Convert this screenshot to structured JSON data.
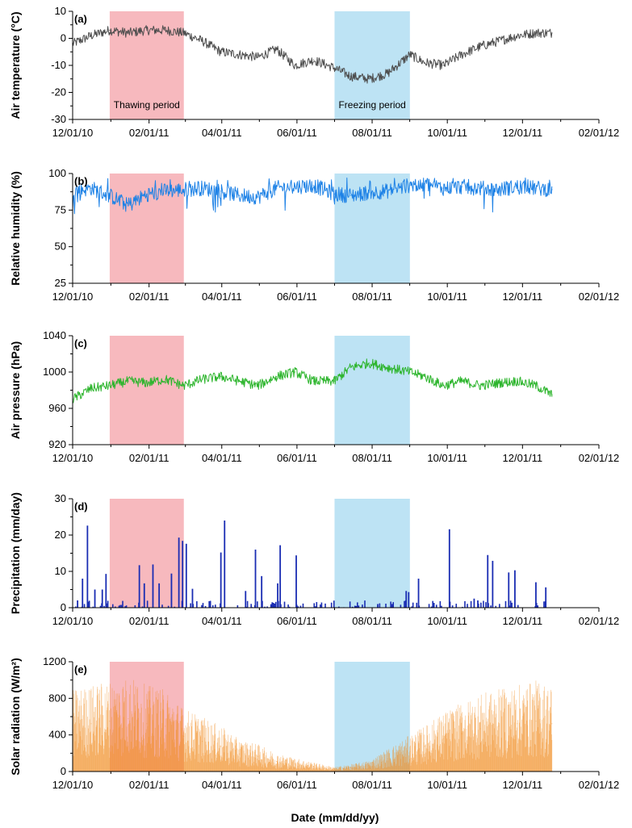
{
  "figure": {
    "xlabel": "Date (mm/dd/yy)",
    "x_tick_labels": [
      "12/01/10",
      "02/01/11",
      "04/01/11",
      "06/01/11",
      "08/01/11",
      "10/01/11",
      "12/01/11",
      "02/01/12"
    ],
    "periods": [
      {
        "name": "thawing",
        "label": "Thawing period",
        "start_day": 30,
        "end_day": 90,
        "color": "#f7b9be"
      },
      {
        "name": "freezing",
        "label": "Freezing period",
        "start_day": 212,
        "end_day": 273,
        "color": "#bde3f4"
      }
    ]
  },
  "chart_data": [
    {
      "panel": "(a)",
      "type": "line",
      "ylabel": "Air temperature (°C)",
      "ylim": [
        -30,
        10
      ],
      "yticks": [
        10,
        0,
        -10,
        -20,
        -30
      ],
      "color": "#4d4d4d",
      "x_day_range": [
        0,
        426
      ],
      "x": [
        0,
        15,
        30,
        45,
        60,
        75,
        90,
        105,
        120,
        135,
        150,
        165,
        180,
        195,
        212,
        225,
        240,
        255,
        273,
        285,
        300,
        315,
        330,
        345,
        360,
        375,
        388
      ],
      "values": [
        -2,
        1,
        3,
        2,
        3,
        3,
        2,
        -1,
        -5,
        -6,
        -7,
        -4,
        -10,
        -8,
        -11,
        -14,
        -15,
        -13,
        -6,
        -9,
        -10,
        -6,
        -3,
        -1,
        1,
        2,
        2
      ]
    },
    {
      "panel": "(b)",
      "type": "line",
      "ylabel": "Relative humidity (%)",
      "ylim": [
        25,
        100
      ],
      "yticks": [
        100,
        75,
        50,
        25
      ],
      "color": "#1e82e6",
      "x_day_range": [
        0,
        426
      ],
      "x": [
        0,
        15,
        30,
        45,
        60,
        75,
        90,
        105,
        120,
        135,
        150,
        165,
        180,
        195,
        212,
        225,
        240,
        255,
        273,
        285,
        300,
        315,
        330,
        345,
        360,
        375,
        388
      ],
      "values": [
        88,
        90,
        85,
        78,
        86,
        88,
        89,
        90,
        88,
        85,
        84,
        90,
        91,
        92,
        86,
        85,
        87,
        88,
        92,
        93,
        90,
        91,
        90,
        89,
        91,
        90,
        89
      ]
    },
    {
      "panel": "(c)",
      "type": "line",
      "ylabel": "Air pressure (hPa)",
      "ylim": [
        920,
        1040
      ],
      "yticks": [
        1040,
        1000,
        960,
        920
      ],
      "color": "#2db52d",
      "x_day_range": [
        0,
        426
      ],
      "x": [
        0,
        15,
        30,
        45,
        60,
        75,
        90,
        105,
        120,
        135,
        150,
        165,
        180,
        195,
        212,
        225,
        240,
        255,
        273,
        285,
        300,
        315,
        330,
        345,
        360,
        375,
        388
      ],
      "values": [
        970,
        982,
        985,
        990,
        988,
        992,
        985,
        992,
        995,
        990,
        985,
        995,
        1000,
        990,
        990,
        1005,
        1010,
        1005,
        1000,
        995,
        985,
        990,
        985,
        988,
        990,
        985,
        975
      ]
    },
    {
      "panel": "(d)",
      "type": "bar",
      "ylabel": "Precipitation (mm/day)",
      "ylim": [
        0,
        30
      ],
      "yticks": [
        30,
        20,
        10,
        0
      ],
      "color": "#1a2db3",
      "x_day_range": [
        0,
        426
      ],
      "x": [
        4,
        8,
        12,
        18,
        24,
        27,
        54,
        58,
        65,
        70,
        80,
        86,
        89,
        92,
        97,
        120,
        123,
        140,
        148,
        153,
        166,
        168,
        181,
        247,
        270,
        272,
        280,
        305,
        325,
        328,
        336,
        340,
        353,
        358,
        375,
        383
      ],
      "values": [
        2,
        8,
        22.6,
        5,
        5,
        9.3,
        11.7,
        6.7,
        11.9,
        6.7,
        9.4,
        19.3,
        18.4,
        17.6,
        5.2,
        15.2,
        24,
        4.6,
        16,
        8.7,
        6.7,
        17.2,
        14.4,
        1,
        4.6,
        4.3,
        8,
        21.6,
        2.5,
        2,
        14.5,
        12.9,
        9.7,
        10.3,
        7,
        5.6
      ]
    },
    {
      "panel": "(e)",
      "type": "area",
      "ylabel": "Solar radiation (W/m²)",
      "ylim": [
        0,
        1200
      ],
      "yticks": [
        1200,
        800,
        400,
        0
      ],
      "color": "#f08a1e",
      "x_day_range": [
        0,
        426
      ],
      "x": [
        0,
        15,
        30,
        45,
        60,
        75,
        90,
        105,
        120,
        135,
        150,
        165,
        180,
        195,
        212,
        225,
        240,
        255,
        273,
        285,
        300,
        315,
        330,
        345,
        360,
        375,
        388
      ],
      "values": [
        900,
        950,
        1000,
        1050,
        950,
        900,
        700,
        600,
        500,
        350,
        300,
        200,
        150,
        100,
        50,
        80,
        120,
        250,
        400,
        500,
        650,
        750,
        850,
        900,
        950,
        1000,
        950
      ]
    }
  ]
}
